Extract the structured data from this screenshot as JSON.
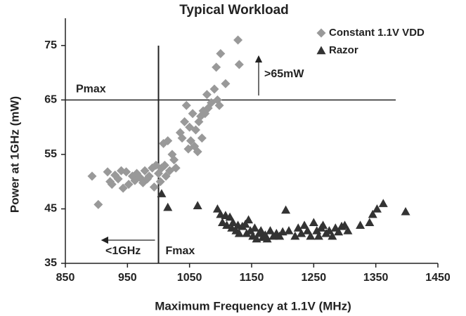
{
  "chart_data": {
    "type": "scatter",
    "title": "Typical Workload",
    "x_label": "Maximum Frequency at 1.1V (MHz)",
    "y_label": "Power at 1GHz (mW)",
    "xlim": [
      850,
      1450
    ],
    "ylim": [
      35,
      80
    ],
    "xticks": [
      850,
      950,
      1050,
      1150,
      1250,
      1350,
      1450
    ],
    "yticks": [
      35,
      45,
      55,
      65,
      75
    ],
    "legend": "upper right",
    "annotations": [
      {
        "text": "Pmax",
        "y": 65
      },
      {
        "text": "Fmax",
        "x": 1000
      },
      {
        "text": ">65mW"
      },
      {
        "text": "<1GHz"
      }
    ],
    "series": [
      {
        "name": "Constant 1.1V VDD",
        "color": "#999999",
        "marker": "diamond",
        "x": [
          893,
          903,
          918,
          922,
          925,
          930,
          935,
          940,
          943,
          948,
          952,
          958,
          962,
          965,
          970,
          975,
          978,
          982,
          985,
          990,
          993,
          996,
          1000,
          1003,
          1005,
          1008,
          1010,
          1012,
          1015,
          1018,
          1022,
          1025,
          1028,
          1035,
          1038,
          1042,
          1045,
          1048,
          1050,
          1052,
          1055,
          1058,
          1060,
          1063,
          1065,
          1068,
          1070,
          1072,
          1075,
          1078,
          1080,
          1085,
          1090,
          1093,
          1095,
          1098,
          1100,
          1108,
          1128,
          1130
        ],
        "values": [
          51,
          45.8,
          51.8,
          50,
          49.5,
          51.2,
          50.5,
          52,
          48.8,
          51.8,
          49.5,
          51,
          50.2,
          51.5,
          50.8,
          49.8,
          52,
          50.5,
          51,
          52.5,
          49,
          53,
          51.5,
          50,
          52.5,
          57,
          53,
          51,
          57.5,
          52,
          55,
          54,
          52.5,
          59,
          58,
          61,
          64,
          56,
          60,
          57.5,
          62.5,
          56.5,
          59.5,
          55.5,
          61,
          62,
          58,
          63,
          62.5,
          66,
          63.5,
          64.5,
          67,
          71,
          65,
          64,
          73.5,
          68,
          76,
          71.5
        ]
      },
      {
        "name": "Razor",
        "color": "#333333",
        "marker": "triangle",
        "x": [
          1005,
          1015,
          1063,
          1095,
          1100,
          1103,
          1108,
          1110,
          1115,
          1118,
          1120,
          1125,
          1128,
          1130,
          1135,
          1140,
          1142,
          1145,
          1148,
          1152,
          1155,
          1158,
          1162,
          1165,
          1168,
          1172,
          1175,
          1180,
          1185,
          1190,
          1195,
          1200,
          1205,
          1210,
          1220,
          1225,
          1230,
          1235,
          1240,
          1245,
          1250,
          1255,
          1258,
          1262,
          1265,
          1270,
          1275,
          1280,
          1285,
          1290,
          1295,
          1300,
          1305,
          1325,
          1340,
          1345,
          1352,
          1362,
          1398
        ],
        "values": [
          47.8,
          45.3,
          45.6,
          45,
          44,
          42.5,
          43.8,
          42,
          43.5,
          41.5,
          42.5,
          41,
          42,
          40.5,
          41.8,
          42.2,
          40.5,
          43,
          41,
          40,
          41.5,
          39.5,
          40.5,
          41,
          39.8,
          40.2,
          39.5,
          41,
          40,
          40.5,
          40,
          40.8,
          44.8,
          41,
          40,
          41.5,
          40.5,
          42,
          41,
          40,
          42.5,
          41,
          40,
          41.5,
          42,
          40.5,
          41,
          40,
          41.5,
          40.8,
          41.8,
          42,
          41,
          42,
          42.5,
          44,
          45,
          46,
          44.5
        ]
      }
    ]
  }
}
